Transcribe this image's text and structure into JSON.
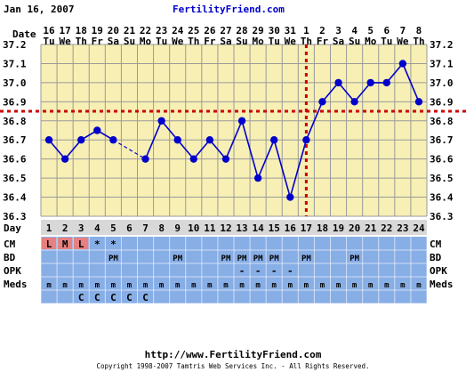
{
  "header": {
    "date": "Jan 16, 2007",
    "site": "FertilityFriend.com"
  },
  "footer": {
    "url": "http://www.FertilityFriend.com",
    "copyright": "Copyright 1998-2007 Tamtris Web Services Inc. - All Rights Reserved."
  },
  "row_labels": {
    "date": "Date",
    "day": "Day",
    "cm": "CM",
    "bd": "BD",
    "opk": "OPK",
    "meds": "Meds"
  },
  "chart_data": {
    "type": "line",
    "title": "",
    "xlabel": "Day",
    "ylabel": "",
    "ylim": [
      36.3,
      37.2
    ],
    "yticks": [
      "37.2",
      "37.1",
      "37.0",
      "36.9",
      "36.8",
      "36.7",
      "36.6",
      "36.5",
      "36.4",
      "36.3"
    ],
    "dates": [
      "16",
      "17",
      "18",
      "19",
      "20",
      "21",
      "22",
      "23",
      "24",
      "25",
      "26",
      "27",
      "28",
      "29",
      "30",
      "31",
      "1",
      "2",
      "3",
      "4",
      "5",
      "6",
      "7",
      "8"
    ],
    "weekdays": [
      "Tu",
      "We",
      "Th",
      "Fr",
      "Sa",
      "Su",
      "Mo",
      "Tu",
      "We",
      "Th",
      "Fr",
      "Sa",
      "Su",
      "Mo",
      "Tu",
      "We",
      "Th",
      "Fr",
      "Sa",
      "Su",
      "Mo",
      "Tu",
      "We",
      "Th"
    ],
    "days": [
      "1",
      "2",
      "3",
      "4",
      "5",
      "6",
      "7",
      "8",
      "9",
      "10",
      "11",
      "12",
      "13",
      "14",
      "15",
      "16",
      "17",
      "18",
      "19",
      "20",
      "21",
      "22",
      "23",
      "24"
    ],
    "temps": [
      36.7,
      36.6,
      36.7,
      36.75,
      36.7,
      null,
      36.6,
      36.8,
      36.7,
      36.6,
      36.7,
      36.6,
      36.8,
      36.5,
      36.7,
      36.4,
      36.7,
      36.9,
      37.0,
      36.9,
      37.0,
      37.0,
      37.1,
      36.9
    ],
    "coverline": 36.85,
    "ovulation_day": 17,
    "cm": [
      "L",
      "M",
      "L",
      "*",
      "*",
      "",
      "",
      "",
      "",
      "",
      "",
      "",
      "",
      "",
      "",
      "",
      "",
      "",
      "",
      "",
      "",
      "",
      "",
      ""
    ],
    "bd": [
      "",
      "",
      "",
      "",
      "PM",
      "",
      "",
      "",
      "PM",
      "",
      "",
      "PM",
      "PM",
      "PM",
      "PM",
      "",
      "PM",
      "",
      "",
      "PM",
      "",
      "",
      "",
      ""
    ],
    "opk": [
      "",
      "",
      "",
      "",
      "",
      "",
      "",
      "",
      "",
      "",
      "",
      "",
      "-",
      "-",
      "-",
      "-",
      "",
      "",
      "",
      "",
      "",
      "",
      "",
      ""
    ],
    "meds": [
      "m",
      "m",
      "m",
      "m",
      "m",
      "m",
      "m",
      "m",
      "m",
      "m",
      "m",
      "m",
      "m",
      "m",
      "m",
      "m",
      "m",
      "m",
      "m",
      "m",
      "m",
      "m",
      "m",
      "m"
    ],
    "meds2": [
      "",
      "",
      "C",
      "C",
      "C",
      "C",
      "C",
      "",
      "",
      "",
      "",
      "",
      "",
      "",
      "",
      "",
      "",
      "",
      "",
      "",
      "",
      "",
      "",
      ""
    ],
    "colors": {
      "plot_bg": "#f7efb4",
      "grid": "#9a9a9a",
      "line": "#0000cc",
      "coverline": "#cc0000",
      "date_header_bg": "#ffffff",
      "day_row_bg": "#d8d8d8",
      "table_bg": "#88aee6",
      "cm_cell": "#e88080",
      "site_blue": "#0000cc"
    }
  }
}
